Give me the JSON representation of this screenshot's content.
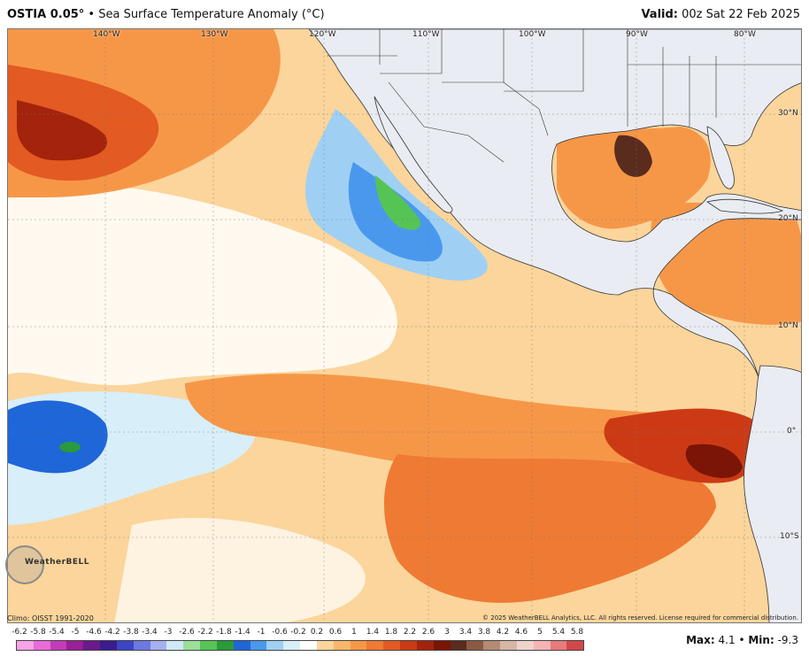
{
  "header": {
    "model": "OSTIA 0.05°",
    "title": "• Sea Surface Temperature Anomaly (°C)",
    "valid_label": "Valid:",
    "valid_time": "00z Sat 22 Feb 2025"
  },
  "map": {
    "lon_labels": [
      "140°W",
      "130°W",
      "120°W",
      "110°W",
      "100°W",
      "90°W",
      "80°W"
    ],
    "lat_labels": [
      "30°N",
      "20°N",
      "10°N",
      "0°",
      "10°S"
    ]
  },
  "logo": {
    "text": "WeatherBELL"
  },
  "footer": {
    "climo": "Climo: OISST 1991-2020",
    "copyright": "© 2025 WeatherBELL Analytics, LLC. All rights reserved. License required for commercial distribution.",
    "max_label": "Max:",
    "max_value": "4.1",
    "separator": "•",
    "min_label": "Min:",
    "min_value": "-9.3"
  },
  "colorbar": {
    "ticks": [
      "-6.2",
      "-5.8",
      "-5.4",
      "-5",
      "-4.6",
      "-4.2",
      "-3.8",
      "-3.4",
      "-3",
      "-2.6",
      "-2.2",
      "-1.8",
      "-1.4",
      "-1",
      "-0.6",
      "-0.2",
      "0.2",
      "0.6",
      "1",
      "1.4",
      "1.8",
      "2.2",
      "2.6",
      "3",
      "3.4",
      "3.8",
      "4.2",
      "4.6",
      "5",
      "5.4",
      "5.8"
    ],
    "colors": [
      "#f7a3e6",
      "#ea6ad7",
      "#c43bb8",
      "#9b1f97",
      "#6a1a8a",
      "#3b1c8e",
      "#3c45c4",
      "#6d79e0",
      "#a6b0f0",
      "#cfe9f7",
      "#9adf9a",
      "#55c455",
      "#2a9a3a",
      "#1f66d8",
      "#4a98ee",
      "#9fd0f3",
      "#d8eef8",
      "#ffffff",
      "#fbd59b",
      "#f9b76b",
      "#f69748",
      "#ef7a33",
      "#e35a22",
      "#cc3a15",
      "#a4230c",
      "#7a1507",
      "#5a2c1e",
      "#8a5a45",
      "#b48a76",
      "#d8b6a6",
      "#efd3cb",
      "#f6b3b3",
      "#e77a7a",
      "#d24848"
    ]
  }
}
